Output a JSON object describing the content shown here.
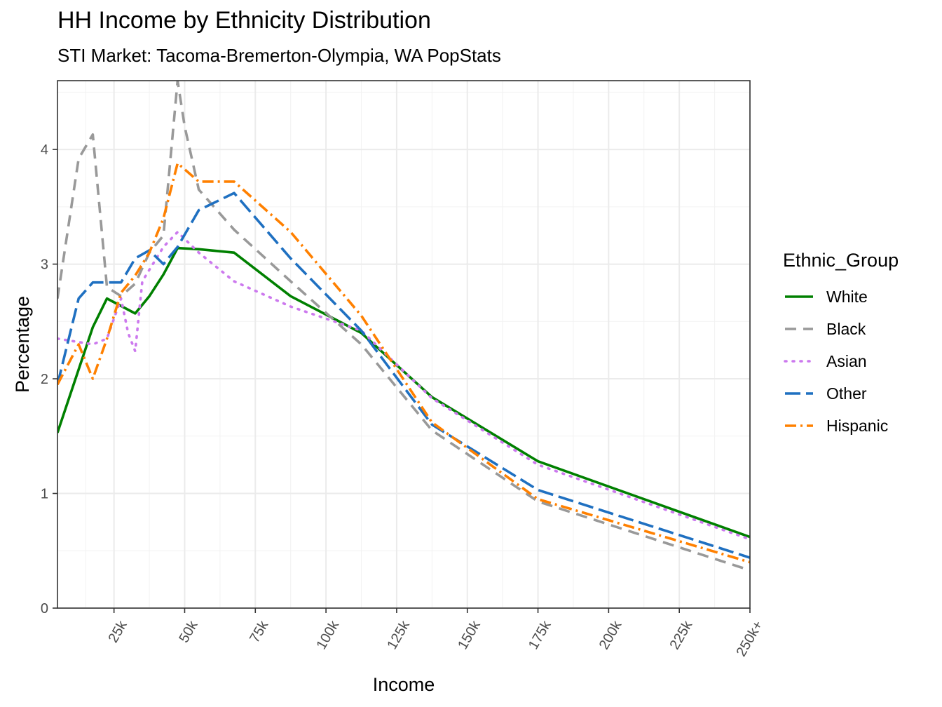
{
  "chart_data": {
    "type": "line",
    "title": "HH Income by Ethnicity Distribution",
    "subtitle": "STI Market: Tacoma-Bremerton-Olympia, WA PopStats",
    "xlabel": "Income",
    "ylabel": "Percentage",
    "xlim": [
      5,
      250
    ],
    "ylim": [
      0,
      4.6
    ],
    "x_ticks": [
      {
        "value": 25,
        "label": "25k"
      },
      {
        "value": 50,
        "label": "50k"
      },
      {
        "value": 75,
        "label": "75k"
      },
      {
        "value": 100,
        "label": "100k"
      },
      {
        "value": 125,
        "label": "125k"
      },
      {
        "value": 150,
        "label": "150k"
      },
      {
        "value": 175,
        "label": "175k"
      },
      {
        "value": 200,
        "label": "200k"
      },
      {
        "value": 225,
        "label": "225k"
      },
      {
        "value": 250,
        "label": "250k+"
      }
    ],
    "y_ticks": [
      {
        "value": 0,
        "label": "0"
      },
      {
        "value": 1,
        "label": "1"
      },
      {
        "value": 2,
        "label": "2"
      },
      {
        "value": 3,
        "label": "3"
      },
      {
        "value": 4,
        "label": "4"
      }
    ],
    "grid": true,
    "legend": {
      "title": "Ethnic_Group",
      "position": "right"
    },
    "series": [
      {
        "name": "White",
        "color": "#008000",
        "dash": "solid",
        "points": [
          [
            5,
            1.53
          ],
          [
            17.5,
            2.45
          ],
          [
            22.5,
            2.7
          ],
          [
            32.5,
            2.57
          ],
          [
            37.5,
            2.72
          ],
          [
            42.5,
            2.91
          ],
          [
            47.5,
            3.14
          ],
          [
            55,
            3.13
          ],
          [
            67.5,
            3.1
          ],
          [
            87.5,
            2.72
          ],
          [
            112.5,
            2.4
          ],
          [
            137.5,
            1.84
          ],
          [
            175,
            1.28
          ],
          [
            250,
            0.62
          ]
        ]
      },
      {
        "name": "Black",
        "color": "#999999",
        "dash": "dashed",
        "points": [
          [
            5,
            2.7
          ],
          [
            12.5,
            3.92
          ],
          [
            17.5,
            4.13
          ],
          [
            22.5,
            2.8
          ],
          [
            27.5,
            2.72
          ],
          [
            32.5,
            2.83
          ],
          [
            37.5,
            3.1
          ],
          [
            42.5,
            3.25
          ],
          [
            47.5,
            4.6
          ],
          [
            50,
            4.2
          ],
          [
            55,
            3.65
          ],
          [
            67.5,
            3.3
          ],
          [
            87.5,
            2.85
          ],
          [
            112.5,
            2.3
          ],
          [
            137.5,
            1.55
          ],
          [
            175,
            0.93
          ],
          [
            250,
            0.33
          ]
        ]
      },
      {
        "name": "Asian",
        "color": "#CC79EE",
        "dash": "dotted",
        "points": [
          [
            5,
            2.35
          ],
          [
            17.5,
            2.3
          ],
          [
            22.5,
            2.35
          ],
          [
            27.5,
            2.7
          ],
          [
            30,
            2.4
          ],
          [
            32.5,
            2.24
          ],
          [
            35,
            2.85
          ],
          [
            42.5,
            3.15
          ],
          [
            47.5,
            3.28
          ],
          [
            55,
            3.1
          ],
          [
            67.5,
            2.85
          ],
          [
            87.5,
            2.63
          ],
          [
            112.5,
            2.42
          ],
          [
            137.5,
            1.83
          ],
          [
            175,
            1.25
          ],
          [
            250,
            0.6
          ]
        ]
      },
      {
        "name": "Other",
        "color": "#1F70C1",
        "dash": "longdash",
        "points": [
          [
            5,
            1.95
          ],
          [
            12.5,
            2.7
          ],
          [
            17.5,
            2.84
          ],
          [
            22.5,
            2.84
          ],
          [
            27.5,
            2.84
          ],
          [
            32.5,
            3.05
          ],
          [
            37.5,
            3.12
          ],
          [
            42.5,
            3.0
          ],
          [
            47.5,
            3.15
          ],
          [
            55,
            3.47
          ],
          [
            67.5,
            3.62
          ],
          [
            87.5,
            3.05
          ],
          [
            112.5,
            2.42
          ],
          [
            137.5,
            1.6
          ],
          [
            175,
            1.03
          ],
          [
            250,
            0.44
          ]
        ]
      },
      {
        "name": "Hispanic",
        "color": "#FF8000",
        "dash": "dotdash",
        "points": [
          [
            5,
            1.95
          ],
          [
            12.5,
            2.3
          ],
          [
            17.5,
            2.0
          ],
          [
            22.5,
            2.35
          ],
          [
            27.5,
            2.75
          ],
          [
            32.5,
            2.9
          ],
          [
            37.5,
            3.1
          ],
          [
            42.5,
            3.4
          ],
          [
            47.5,
            3.88
          ],
          [
            55,
            3.72
          ],
          [
            67.5,
            3.72
          ],
          [
            87.5,
            3.28
          ],
          [
            112.5,
            2.55
          ],
          [
            137.5,
            1.62
          ],
          [
            175,
            0.95
          ],
          [
            250,
            0.4
          ]
        ]
      }
    ]
  }
}
